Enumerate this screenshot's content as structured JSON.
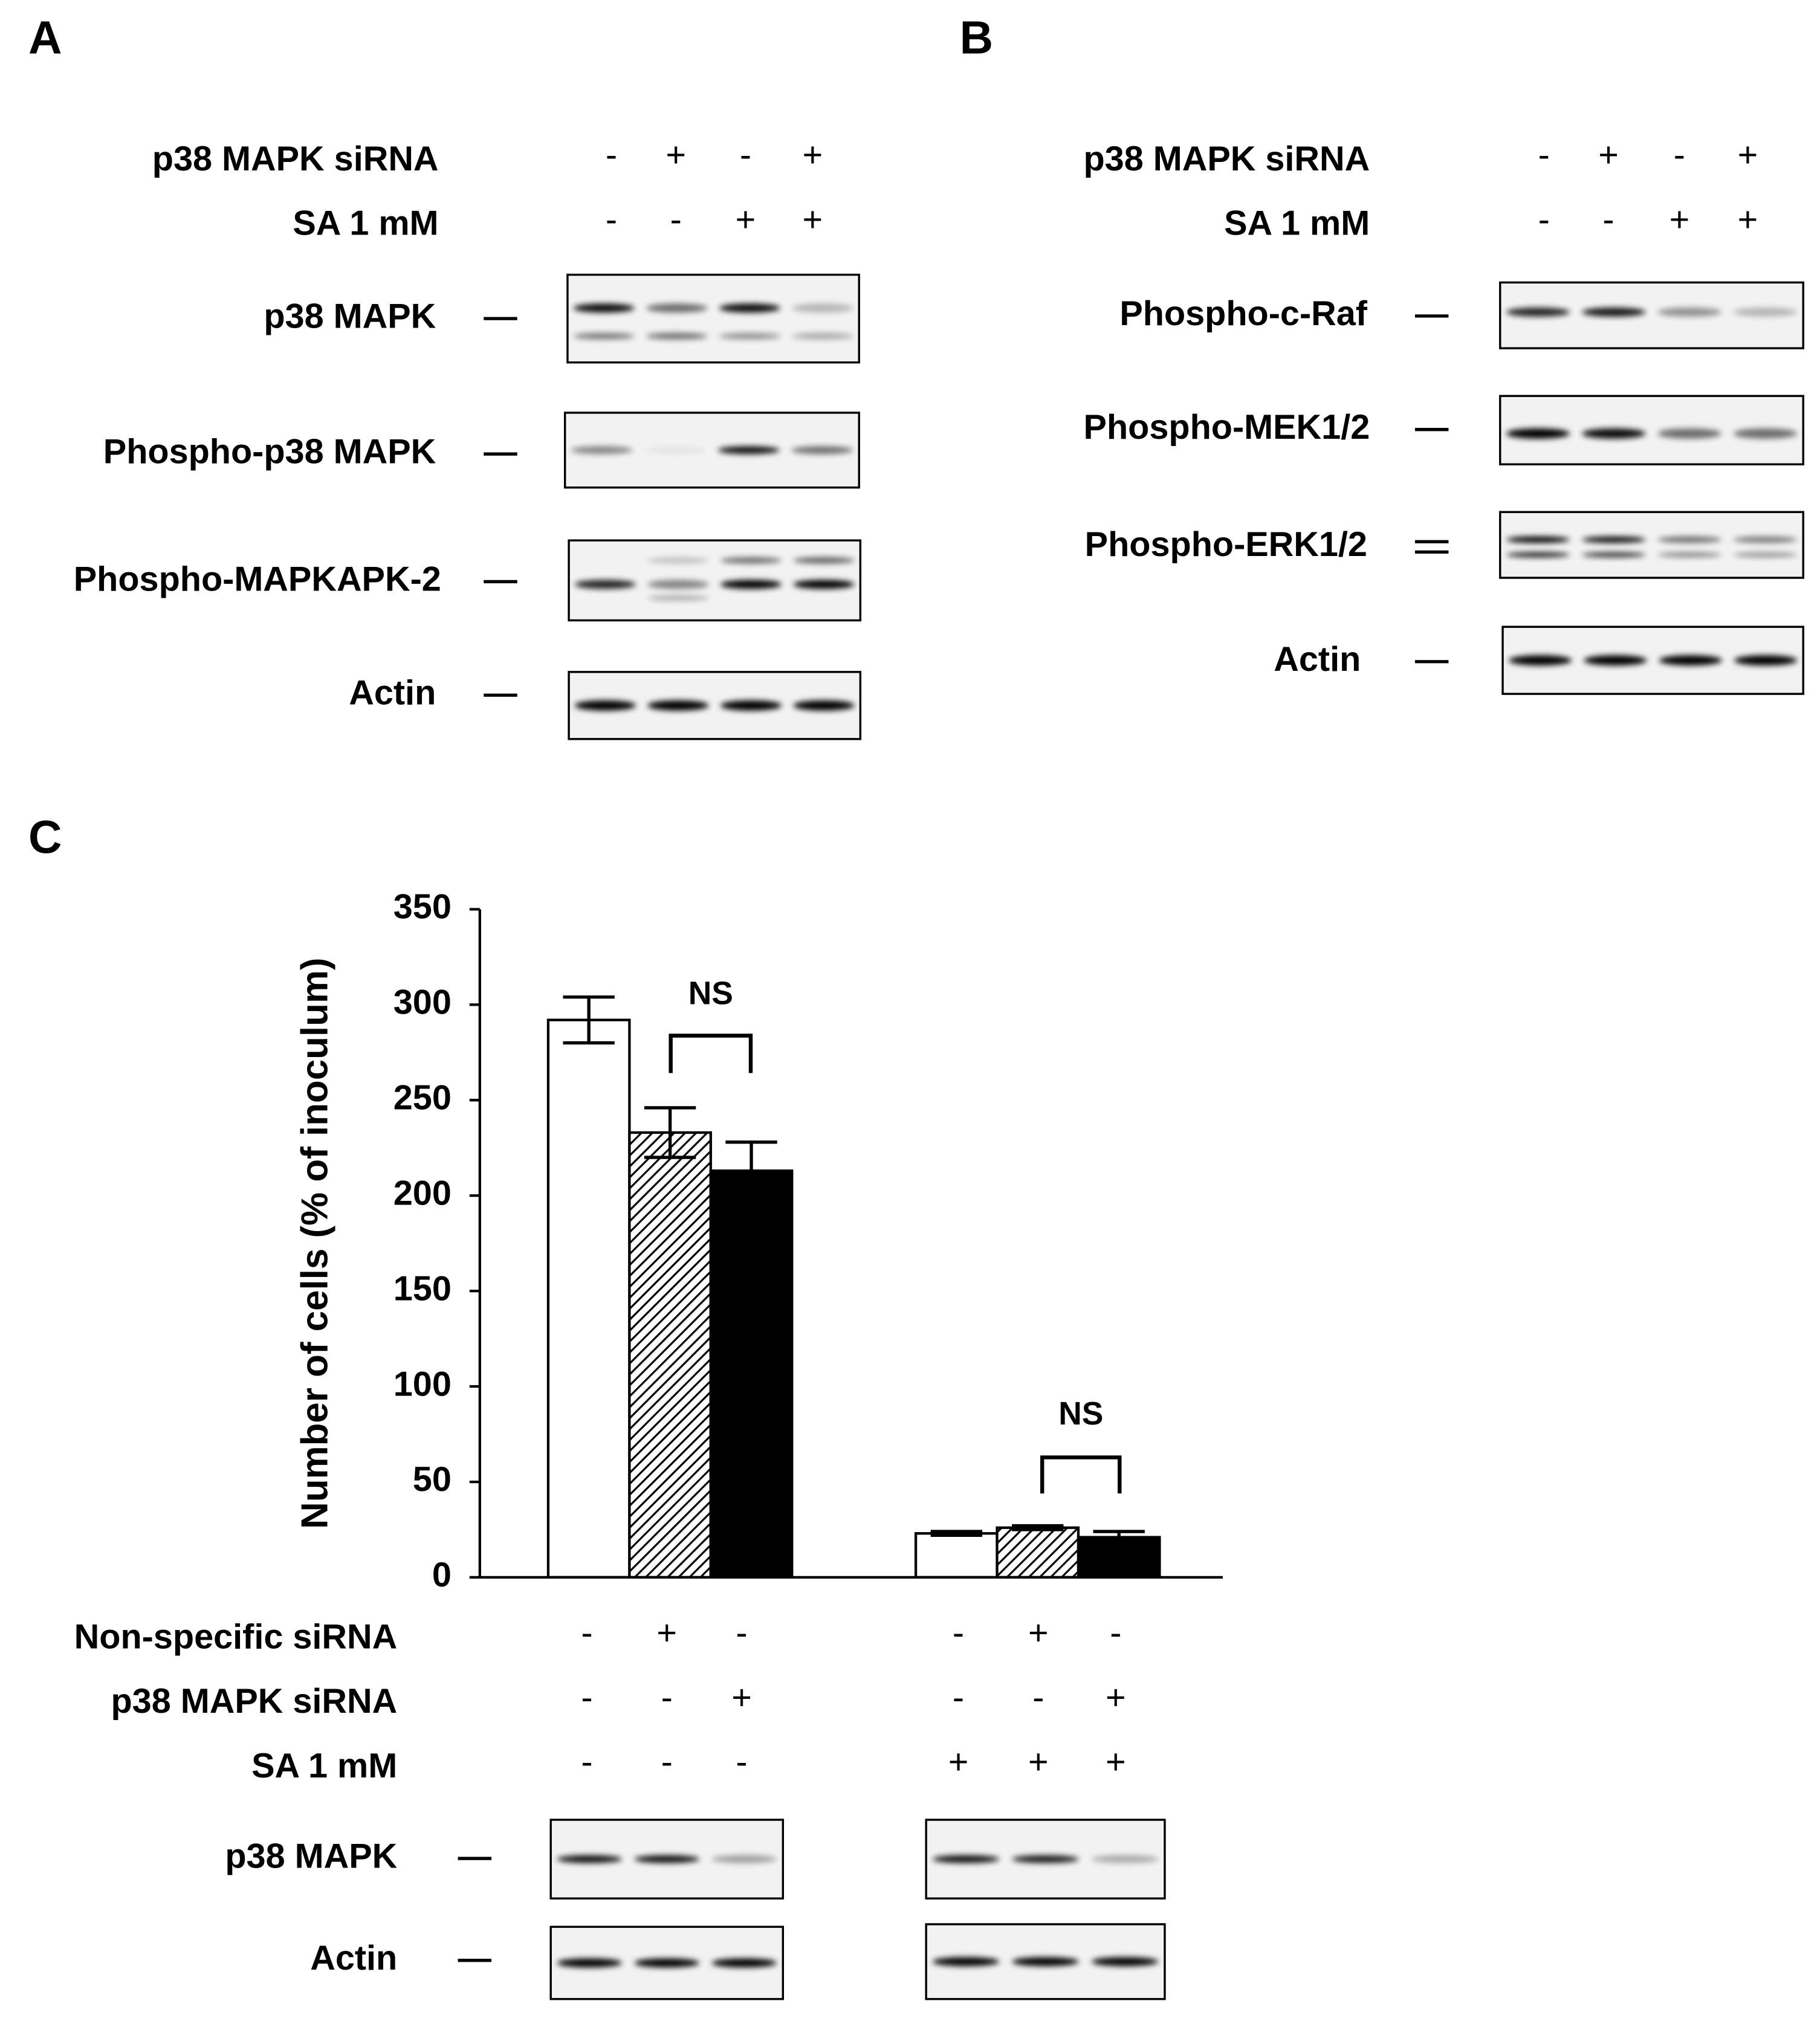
{
  "panel_a": {
    "label": "A",
    "conditions": [
      {
        "label": "p38 MAPK siRNA",
        "signs": [
          "-",
          "+",
          "-",
          "+"
        ]
      },
      {
        "label": "SA 1 mM",
        "signs": [
          "-",
          "-",
          "+",
          "+"
        ]
      }
    ],
    "blots": [
      "p38 MAPK",
      "Phospho-p38 MAPK",
      "Phospho-MAPKAPK-2",
      "Actin"
    ]
  },
  "panel_b": {
    "label": "B",
    "conditions": [
      {
        "label": "p38 MAPK siRNA",
        "signs": [
          "-",
          "+",
          "-",
          "+"
        ]
      },
      {
        "label": "SA 1 mM",
        "signs": [
          "-",
          "-",
          "+",
          "+"
        ]
      }
    ],
    "blots": [
      "Phospho-c-Raf",
      "Phospho-MEK1/2",
      "Phospho-ERK1/2",
      "Actin"
    ]
  },
  "panel_c": {
    "label": "C",
    "conditions": [
      {
        "label": "Non-specific siRNA",
        "signs": [
          "-",
          "+",
          "-",
          "-",
          "+",
          "-"
        ]
      },
      {
        "label": "p38 MAPK siRNA",
        "signs": [
          "-",
          "-",
          "+",
          "-",
          "-",
          "+"
        ]
      },
      {
        "label": "SA 1 mM",
        "signs": [
          "-",
          "-",
          "-",
          "+",
          "+",
          "+"
        ]
      }
    ],
    "blots": [
      "p38 MAPK",
      "Actin"
    ]
  },
  "chart_data": {
    "type": "bar",
    "y_label": "Number of cells (% of inoculum)",
    "ylim": [
      0,
      350
    ],
    "yticks": [
      0,
      50,
      100,
      150,
      200,
      250,
      300,
      350
    ],
    "series": [
      {
        "color": "#ffffff",
        "values": [
          292,
          23
        ],
        "errors": [
          12,
          1
        ]
      },
      {
        "color": "#000000",
        "pattern": "hatch",
        "values": [
          233,
          26
        ],
        "errors": [
          13,
          1
        ]
      },
      {
        "color": "#000000",
        "values": [
          213,
          21
        ],
        "errors": [
          15,
          3
        ]
      }
    ],
    "annotations": [
      "NS",
      "NS"
    ]
  }
}
